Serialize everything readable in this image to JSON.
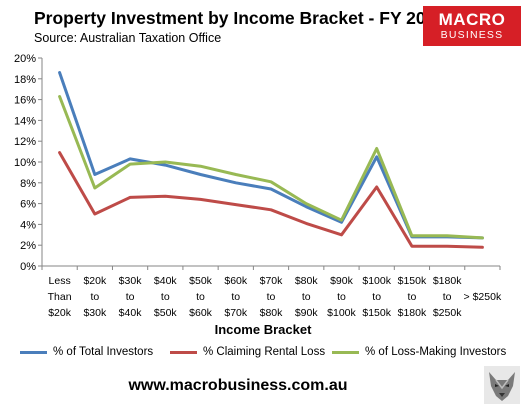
{
  "title": "Property Investment by Income Bracket - FY 2012",
  "subtitle": "Source: Australian Taxation Office",
  "logo": {
    "line1": "MACRO",
    "line2": "BUSINESS",
    "color": "#d61f26"
  },
  "footer": "www.macrobusiness.com.au",
  "chart_data": {
    "type": "line",
    "title": "Property Investment by Income Bracket - FY 2012",
    "xlabel": "Income Bracket",
    "ylabel": "",
    "ylim": [
      0,
      20
    ],
    "y_ticks": [
      "0%",
      "2%",
      "4%",
      "6%",
      "8%",
      "10%",
      "12%",
      "14%",
      "16%",
      "18%",
      "20%"
    ],
    "grid": false,
    "legend_position": "bottom",
    "categories": [
      [
        "Less",
        "Than",
        "$20k"
      ],
      [
        "$20k",
        "to",
        "$30k"
      ],
      [
        "$30k",
        "to",
        "$40k"
      ],
      [
        "$40k",
        "to",
        "$50k"
      ],
      [
        "$50k",
        "to",
        "$60k"
      ],
      [
        "$60k",
        "to",
        "$70k"
      ],
      [
        "$70k",
        "to",
        "$80k"
      ],
      [
        "$80k",
        "to",
        "$90k"
      ],
      [
        "$90k",
        "to",
        "$100k"
      ],
      [
        "$100k",
        "to",
        "$150k"
      ],
      [
        "$150k",
        "to",
        "$180k"
      ],
      [
        "$180k",
        "to",
        "$250k"
      ],
      [
        "",
        "> $250k",
        ""
      ]
    ],
    "series": [
      {
        "name": "% of Total Investors",
        "color": "#4a7ebb",
        "values": [
          18.6,
          8.8,
          10.3,
          9.7,
          8.8,
          8.0,
          7.4,
          5.7,
          4.2,
          10.5,
          2.8,
          2.8,
          2.7
        ]
      },
      {
        "name": "% Claiming Rental Loss",
        "color": "#be4b48",
        "values": [
          10.9,
          5.0,
          6.6,
          6.7,
          6.4,
          5.9,
          5.4,
          4.1,
          3.0,
          7.6,
          1.9,
          1.9,
          1.8
        ]
      },
      {
        "name": "% of Loss-Making Investors",
        "color": "#98b954",
        "values": [
          16.3,
          7.5,
          9.8,
          10.0,
          9.6,
          8.8,
          8.1,
          6.0,
          4.4,
          11.3,
          2.9,
          2.9,
          2.7
        ]
      }
    ]
  }
}
